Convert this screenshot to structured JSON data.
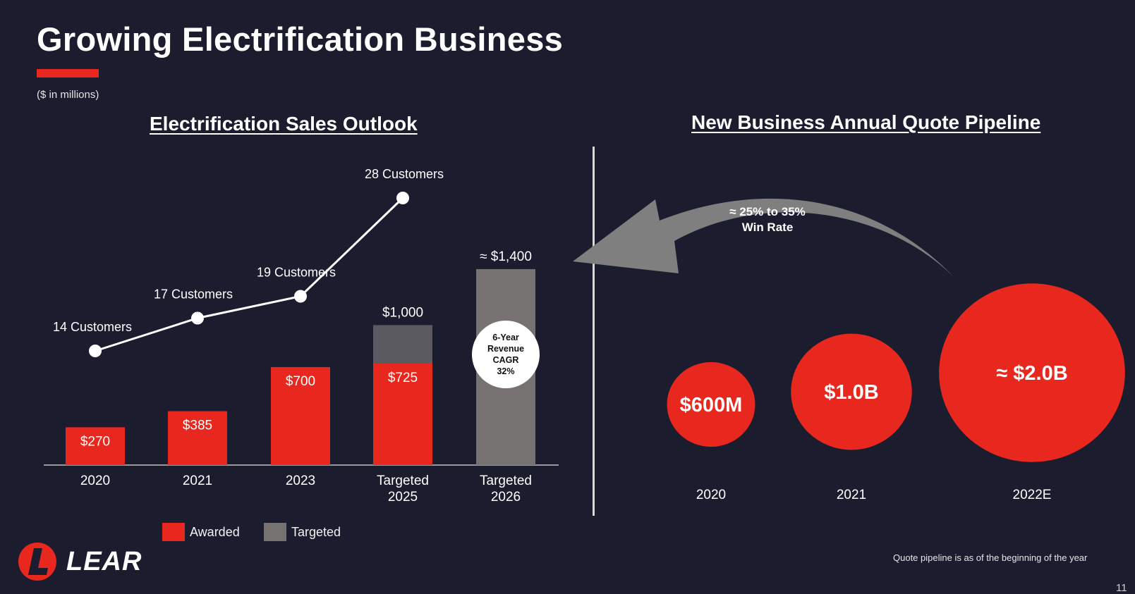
{
  "page": {
    "title": "Growing Electrification Business",
    "units_note": "($ in millions)",
    "page_number": "11",
    "footnote": "Quote pipeline is as of the beginning of the year",
    "logo_text": "LEAR"
  },
  "colors": {
    "background": "#1b1c2e",
    "awarded": "#e8281f",
    "targeted_2025": "#5a5a60",
    "targeted_2026": "#767272",
    "arrow": "#7f7f7f"
  },
  "chart_data": [
    {
      "type": "bar",
      "title": "Electrification Sales Outlook",
      "categories": [
        "2020",
        "2021",
        "2023",
        "Targeted\n2025",
        "Targeted\n2026"
      ],
      "series": [
        {
          "name": "Awarded",
          "values": [
            270,
            385,
            700,
            725,
            0
          ],
          "labels": [
            "$270",
            "$385",
            "$700",
            "$725",
            ""
          ]
        },
        {
          "name": "Targeted",
          "values": [
            0,
            0,
            0,
            275,
            1400
          ]
        }
      ],
      "totals": [
        270,
        385,
        700,
        1000,
        1400
      ],
      "total_labels": [
        "",
        "",
        "",
        "$1,000",
        "≈ $1,400"
      ],
      "ylim": [
        0,
        1450
      ],
      "customers_line": {
        "categories": [
          "2020",
          "2021",
          "2023",
          "Targeted\n2025"
        ],
        "values": [
          14,
          17,
          19,
          28
        ],
        "labels": [
          "14 Customers",
          "17 Customers",
          "19 Customers",
          "28 Customers"
        ]
      },
      "cagr_badge": [
        "6-Year",
        "Revenue",
        "CAGR",
        "32%"
      ],
      "legend": [
        "Awarded",
        "Targeted"
      ]
    },
    {
      "type": "bubble",
      "title": "New Business Annual Quote Pipeline",
      "categories": [
        "2020",
        "2021",
        "2022E"
      ],
      "values_millions": [
        600,
        1000,
        2000
      ],
      "labels": [
        "$600M",
        "$1.0B",
        "≈ $2.0B"
      ],
      "arrow_label": [
        "≈ 25% to 35%",
        "Win Rate"
      ]
    }
  ]
}
